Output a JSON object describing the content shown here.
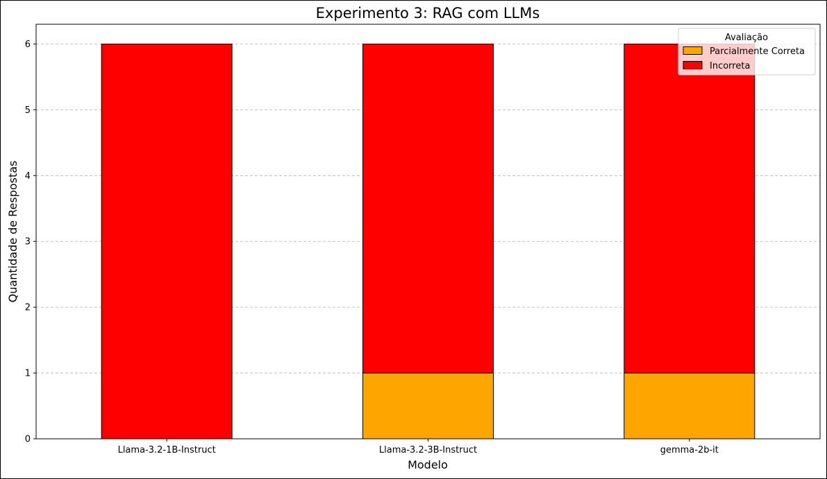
{
  "chart_data": {
    "type": "bar",
    "stacked": true,
    "title": "Experimento 3: RAG com LLMs",
    "xlabel": "Modelo",
    "ylabel": "Quantidade de Respostas",
    "categories": [
      "Llama-3.2-1B-Instruct",
      "Llama-3.2-3B-Instruct",
      "gemma-2b-it"
    ],
    "series": [
      {
        "name": "Parcialmente Correta",
        "values": [
          0,
          1,
          1
        ],
        "color": "#ffa500"
      },
      {
        "name": "Incorreta",
        "values": [
          6,
          5,
          5
        ],
        "color": "#ff0000"
      }
    ],
    "ylim": [
      0,
      6.3
    ],
    "yticks": [
      "0",
      "1",
      "2",
      "3",
      "4",
      "5",
      "6"
    ],
    "grid": "y-dashed",
    "legend": {
      "title": "Avaliação",
      "placement": "top-right"
    }
  }
}
